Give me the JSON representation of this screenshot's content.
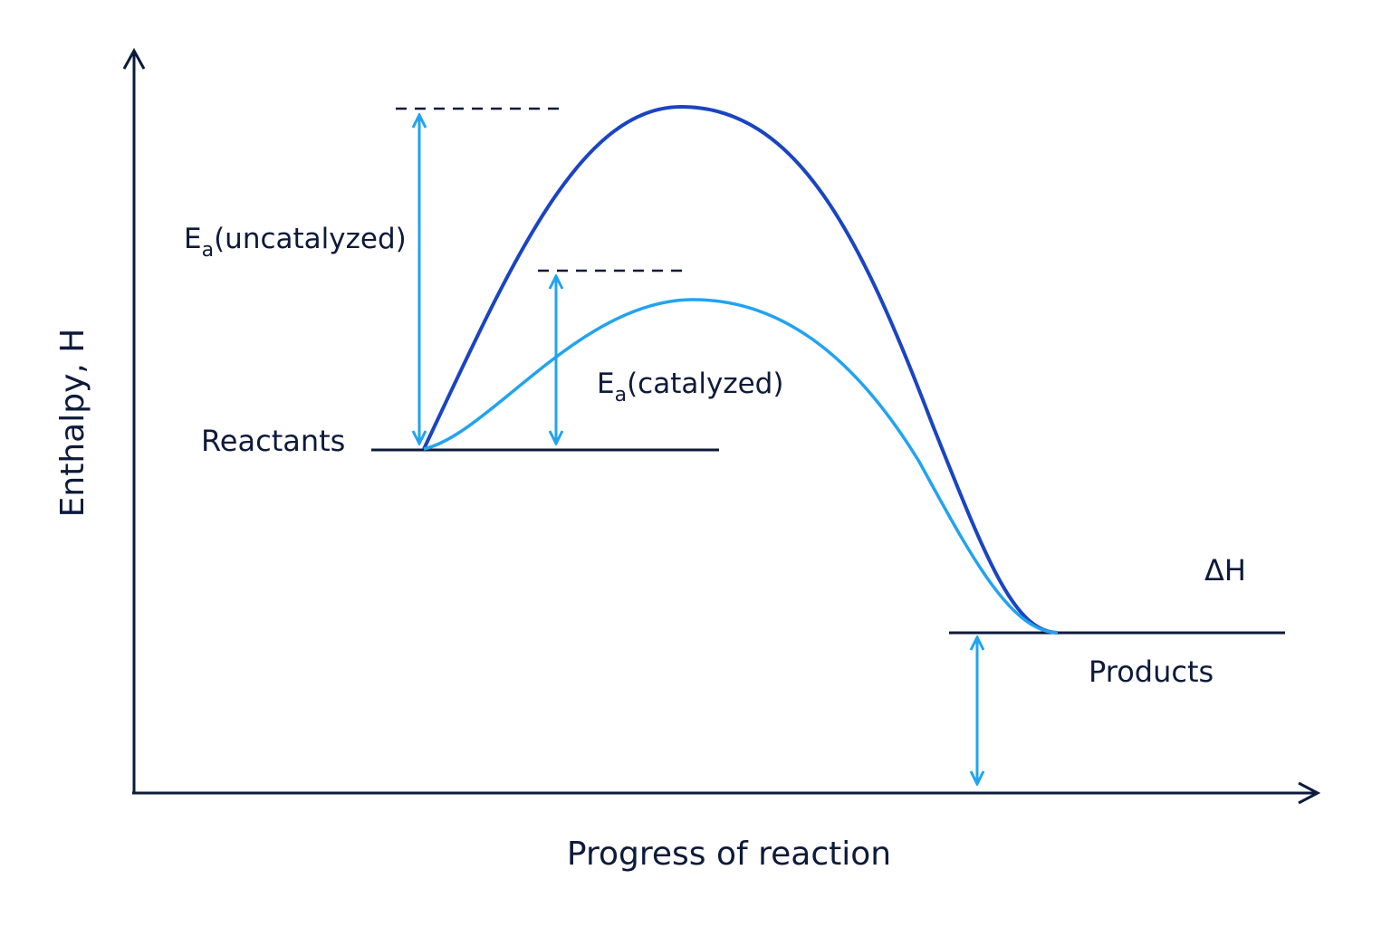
{
  "axes": {
    "y_label": "Enthalpy, H",
    "x_label": "Progress of reaction"
  },
  "levels": {
    "reactants": "Reactants",
    "products": "Products"
  },
  "annotations": {
    "ea_symbol": "E",
    "ea_subscript": "a",
    "ea_uncatalyzed_suffix": "(uncatalyzed)",
    "ea_catalyzed_suffix": "(catalyzed)",
    "delta_h": "ΔH"
  },
  "colors": {
    "axis": "#0d1a3a",
    "uncatalyzed_curve": "#1a44c2",
    "catalyzed_curve": "#22a3f0",
    "arrow": "#22a3f0"
  }
}
